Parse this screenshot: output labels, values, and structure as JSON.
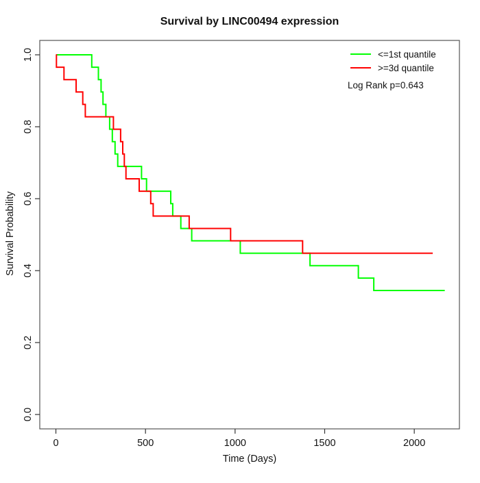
{
  "chart_data": {
    "type": "line",
    "subtype": "kaplan-meier-step",
    "title": "Survival by LINC00494 expression",
    "xlabel": "Time (Days)",
    "ylabel": "Survival Probability",
    "xlim": [
      -90,
      2252
    ],
    "ylim": [
      -0.04,
      1.04
    ],
    "x_ticks": [
      0,
      500,
      1000,
      1500,
      2000
    ],
    "y_ticks": [
      0.0,
      0.2,
      0.4,
      0.6,
      0.8,
      1.0
    ],
    "grid": false,
    "legend_position": "top-right",
    "annotation": "Log Rank p=0.643",
    "axis_color": "#333333",
    "series": [
      {
        "name": "<=1st quantile",
        "color": "#00ff00",
        "start": [
          0,
          1.0
        ],
        "drops": [
          [
            200,
            0.9655
          ],
          [
            237,
            0.931
          ],
          [
            252,
            0.8966
          ],
          [
            263,
            0.8621
          ],
          [
            279,
            0.8276
          ],
          [
            300,
            0.7931
          ],
          [
            315,
            0.7586
          ],
          [
            330,
            0.7241
          ],
          [
            345,
            0.6897
          ],
          [
            478,
            0.6552
          ],
          [
            506,
            0.6207
          ],
          [
            641,
            0.5862
          ],
          [
            652,
            0.5517
          ],
          [
            697,
            0.5172
          ],
          [
            758,
            0.4828
          ],
          [
            1029,
            0.4483
          ],
          [
            1418,
            0.4138
          ],
          [
            1688,
            0.3793
          ],
          [
            1774,
            0.3448
          ]
        ],
        "end_time": 2170
      },
      {
        "name": ">=3d quantile",
        "color": "#ff0000",
        "start": [
          0,
          1.0
        ],
        "drops": [
          [
            3,
            0.9655
          ],
          [
            45,
            0.931
          ],
          [
            113,
            0.8966
          ],
          [
            150,
            0.8621
          ],
          [
            164,
            0.8276
          ],
          [
            321,
            0.7931
          ],
          [
            361,
            0.7586
          ],
          [
            373,
            0.7241
          ],
          [
            382,
            0.6897
          ],
          [
            391,
            0.6552
          ],
          [
            465,
            0.6207
          ],
          [
            529,
            0.5862
          ],
          [
            543,
            0.5517
          ],
          [
            744,
            0.5172
          ],
          [
            975,
            0.4828
          ],
          [
            1377,
            0.4483
          ]
        ],
        "end_time": 2103
      }
    ]
  }
}
